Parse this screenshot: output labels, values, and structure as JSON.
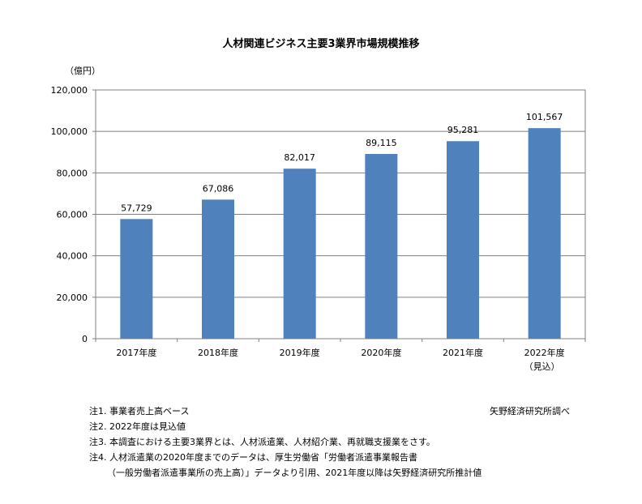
{
  "chart_data": {
    "type": "bar",
    "title": "人材関連ビジネス主要3業界市場規模推移",
    "unit_label": "（億円）",
    "categories": [
      "2017年度",
      "2018年度",
      "2019年度",
      "2020年度",
      "2021年度",
      "2022年度"
    ],
    "category_sublabels": [
      "",
      "",
      "",
      "",
      "",
      "（見込）"
    ],
    "values": [
      57729,
      67086,
      82017,
      89115,
      95281,
      101567
    ],
    "value_labels": [
      "57,729",
      "67,086",
      "82,017",
      "89,115",
      "95,281",
      "101,567"
    ],
    "ylim": [
      0,
      120000
    ],
    "yticks": [
      0,
      20000,
      40000,
      60000,
      80000,
      100000,
      120000
    ],
    "ytick_labels": [
      "0",
      "20,000",
      "40,000",
      "60,000",
      "80,000",
      "100,000",
      "120,000"
    ],
    "grid": true,
    "bar_color": "#4F81BD",
    "legend": "none"
  },
  "notes": [
    "注1.  事業者売上高ベース",
    "注2.  2022年度は見込値",
    "注3. 本調査における主要3業界とは、人材派遣業、人材紹介業、再就職支援業をさす。",
    "注4.  人材派遣業の2020年度までのデータは、厚生労働省「労働者派遣事業報告書",
    "（一般労働者派遣事業所の売上高）」データより引用、2021年度以降は矢野経済研究所推計値"
  ],
  "source": "矢野経済研究所調べ"
}
